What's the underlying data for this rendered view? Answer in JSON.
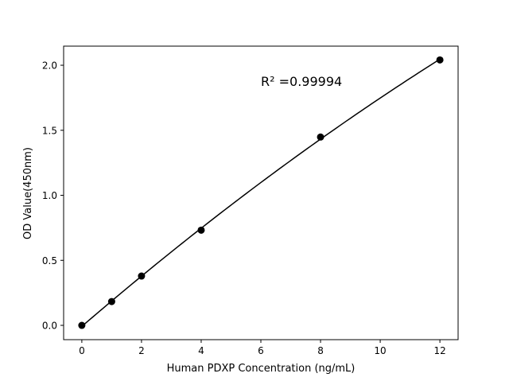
{
  "chart_data": {
    "type": "scatter",
    "title": "",
    "xlabel": "Human PDXP Concentration (ng/mL)",
    "ylabel": "OD Value(450nm)",
    "xlim": [
      -0.61,
      12.61
    ],
    "ylim": [
      -0.11,
      2.147
    ],
    "xticks": [
      0,
      2,
      4,
      6,
      8,
      10,
      12
    ],
    "xtick_labels": [
      "0",
      "2",
      "4",
      "6",
      "8",
      "10",
      "12"
    ],
    "yticks": [
      0.0,
      0.5,
      1.0,
      1.5,
      2.0
    ],
    "ytick_labels": [
      "0.0",
      "0.5",
      "1.0",
      "1.5",
      "2.0"
    ],
    "grid": false,
    "series": [
      {
        "x": [
          0,
          1,
          2,
          4,
          8,
          12
        ],
        "y": [
          0.0,
          0.183,
          0.379,
          0.732,
          1.448,
          2.041
        ],
        "color": "#000000",
        "marker": "circle",
        "fit_line": true
      }
    ],
    "annotation": "R² =0.99994"
  }
}
